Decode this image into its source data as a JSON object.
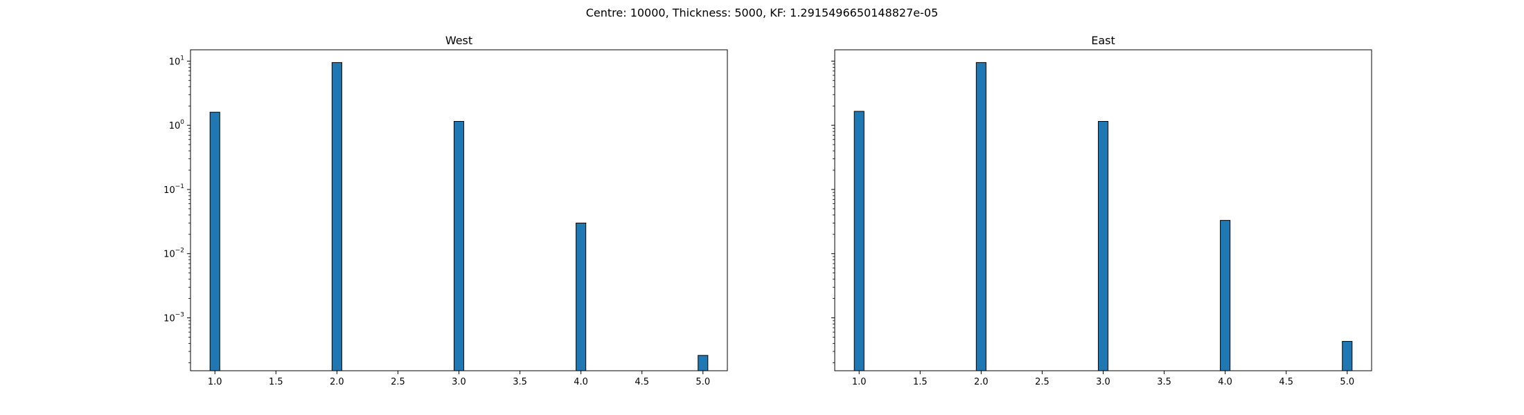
{
  "figure": {
    "suptitle": "Centre: 10000, Thickness: 5000, KF: 1.2915496650148827e-05"
  },
  "chart_data": [
    {
      "type": "bar",
      "title": "West",
      "xlabel": "",
      "ylabel": "",
      "yscale": "log",
      "xlim": [
        0.8,
        5.2
      ],
      "ylim": [
        0.00015,
        15
      ],
      "x_ticks": [
        1.0,
        1.5,
        2.0,
        2.5,
        3.0,
        3.5,
        4.0,
        4.5,
        5.0
      ],
      "x_tick_labels": [
        "1.0",
        "1.5",
        "2.0",
        "2.5",
        "3.0",
        "3.5",
        "4.0",
        "4.5",
        "5.0"
      ],
      "y_major_ticks": [
        {
          "value": 0.001,
          "base": "10",
          "exp": "−3"
        },
        {
          "value": 0.01,
          "base": "10",
          "exp": "−2"
        },
        {
          "value": 0.1,
          "base": "10",
          "exp": "−1"
        },
        {
          "value": 1,
          "base": "10",
          "exp": "0"
        },
        {
          "value": 10,
          "base": "10",
          "exp": "1"
        }
      ],
      "show_y_tick_labels": true,
      "bar_width": 0.08,
      "bar_color": "#1f77b4",
      "edge_color": "#000000",
      "bars": [
        {
          "x": 1.0,
          "value": 1.6
        },
        {
          "x": 2.0,
          "value": 9.5
        },
        {
          "x": 3.0,
          "value": 1.15
        },
        {
          "x": 4.0,
          "value": 0.03
        },
        {
          "x": 5.0,
          "value": 0.00026
        }
      ],
      "grid": false
    },
    {
      "type": "bar",
      "title": "East",
      "xlabel": "",
      "ylabel": "",
      "yscale": "log",
      "xlim": [
        0.8,
        5.2
      ],
      "ylim": [
        0.00015,
        15
      ],
      "x_ticks": [
        1.0,
        1.5,
        2.0,
        2.5,
        3.0,
        3.5,
        4.0,
        4.5,
        5.0
      ],
      "x_tick_labels": [
        "1.0",
        "1.5",
        "2.0",
        "2.5",
        "3.0",
        "3.5",
        "4.0",
        "4.5",
        "5.0"
      ],
      "y_major_ticks": [
        {
          "value": 0.001,
          "base": "10",
          "exp": "−3"
        },
        {
          "value": 0.01,
          "base": "10",
          "exp": "−2"
        },
        {
          "value": 0.1,
          "base": "10",
          "exp": "−1"
        },
        {
          "value": 1,
          "base": "10",
          "exp": "0"
        },
        {
          "value": 10,
          "base": "10",
          "exp": "1"
        }
      ],
      "show_y_tick_labels": false,
      "bar_width": 0.08,
      "bar_color": "#1f77b4",
      "edge_color": "#000000",
      "bars": [
        {
          "x": 1.0,
          "value": 1.65
        },
        {
          "x": 2.0,
          "value": 9.5
        },
        {
          "x": 3.0,
          "value": 1.15
        },
        {
          "x": 4.0,
          "value": 0.033
        },
        {
          "x": 5.0,
          "value": 0.00043
        }
      ],
      "grid": false
    }
  ]
}
